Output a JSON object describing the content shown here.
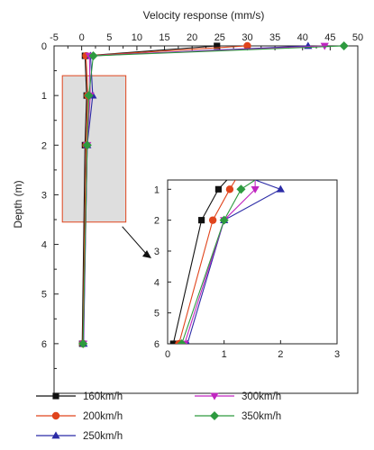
{
  "chart_data": {
    "type": "line",
    "xlabel": "Velocity response (mm/s)",
    "ylabel": "Depth (m)",
    "xlim": [
      -5,
      50
    ],
    "ylim": [
      0,
      7
    ],
    "x_ticks": [
      "-5",
      "0",
      "5",
      "10",
      "15",
      "20",
      "25",
      "30",
      "35",
      "40",
      "45",
      "50"
    ],
    "y_ticks": [
      "0",
      "1",
      "2",
      "3",
      "4",
      "5",
      "6"
    ],
    "x_axis_position": "top",
    "y_axis_inverted": true,
    "grid": false,
    "legend_position": "bottom",
    "series": [
      {
        "name": "160km/h",
        "color": "#111111",
        "marker": "square",
        "depth": [
          0,
          0.2,
          1,
          2,
          6
        ],
        "velocity": [
          24.5,
          0.6,
          0.9,
          0.6,
          0.1
        ]
      },
      {
        "name": "200km/h",
        "color": "#e0441c",
        "marker": "circle",
        "depth": [
          0,
          0.2,
          1,
          2,
          6
        ],
        "velocity": [
          30.0,
          0.8,
          1.1,
          0.8,
          0.2
        ]
      },
      {
        "name": "250km/h",
        "color": "#2b2ba6",
        "marker": "triangle-up",
        "depth": [
          0,
          0.2,
          1,
          2,
          6
        ],
        "velocity": [
          41.0,
          1.6,
          2.0,
          1.0,
          0.35
        ]
      },
      {
        "name": "300km/h",
        "color": "#c026c0",
        "marker": "triangle-down",
        "depth": [
          0,
          0.2,
          1,
          2,
          6
        ],
        "velocity": [
          44.0,
          1.4,
          1.55,
          1.0,
          0.3
        ]
      },
      {
        "name": "350km/h",
        "color": "#2d9a3f",
        "marker": "diamond",
        "depth": [
          0,
          0.2,
          1,
          2,
          6
        ],
        "velocity": [
          47.5,
          2.1,
          1.3,
          1.0,
          0.25
        ]
      }
    ],
    "highlight_box": {
      "x_range": [
        -3.5,
        8
      ],
      "depth_range": [
        0.6,
        3.55
      ],
      "fill": "#dedede",
      "edge": "#e0441c"
    },
    "inset": {
      "xlim": [
        0,
        3
      ],
      "ylim": [
        0.7,
        6
      ],
      "x_ticks": [
        "0",
        "1",
        "2",
        "3"
      ],
      "y_ticks": [
        "1",
        "2",
        "3",
        "4",
        "5",
        "6"
      ],
      "depths": [
        0.7,
        1,
        2,
        6
      ],
      "series_values": [
        [
          1.05,
          0.9,
          0.6,
          0.1
        ],
        [
          1.2,
          1.1,
          0.8,
          0.2
        ],
        [
          1.55,
          2.0,
          1.0,
          0.35
        ],
        [
          1.55,
          1.55,
          1.0,
          0.3
        ],
        [
          1.55,
          1.3,
          1.0,
          0.25
        ]
      ]
    }
  }
}
